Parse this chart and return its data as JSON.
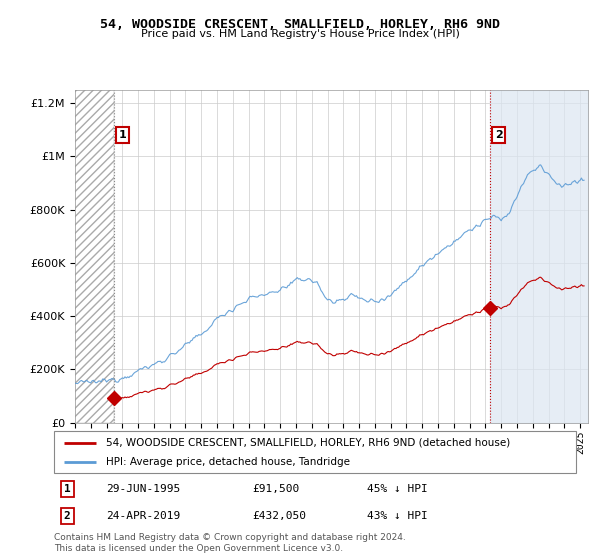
{
  "title": "54, WOODSIDE CRESCENT, SMALLFIELD, HORLEY, RH6 9ND",
  "subtitle": "Price paid vs. HM Land Registry's House Price Index (HPI)",
  "legend_line1": "54, WOODSIDE CRESCENT, SMALLFIELD, HORLEY, RH6 9ND (detached house)",
  "legend_line2": "HPI: Average price, detached house, Tandridge",
  "footer": "Contains HM Land Registry data © Crown copyright and database right 2024.\nThis data is licensed under the Open Government Licence v3.0.",
  "annotation1": {
    "label": "1",
    "date_x": 1995.49,
    "price": 91500,
    "date_str": "29-JUN-1995",
    "price_str": "£91,500",
    "hpi_str": "45% ↓ HPI"
  },
  "annotation2": {
    "label": "2",
    "date_x": 2019.31,
    "price": 432050,
    "date_str": "24-APR-2019",
    "price_str": "£432,050",
    "hpi_str": "43% ↓ HPI"
  },
  "hpi_color": "#5b9bd5",
  "price_color": "#c00000",
  "shading_color": "#dce6f1",
  "ylim": [
    0,
    1250000
  ],
  "xlim_start": 1993.0,
  "xlim_end": 2025.5,
  "yticks": [
    0,
    200000,
    400000,
    600000,
    800000,
    1000000,
    1200000
  ]
}
